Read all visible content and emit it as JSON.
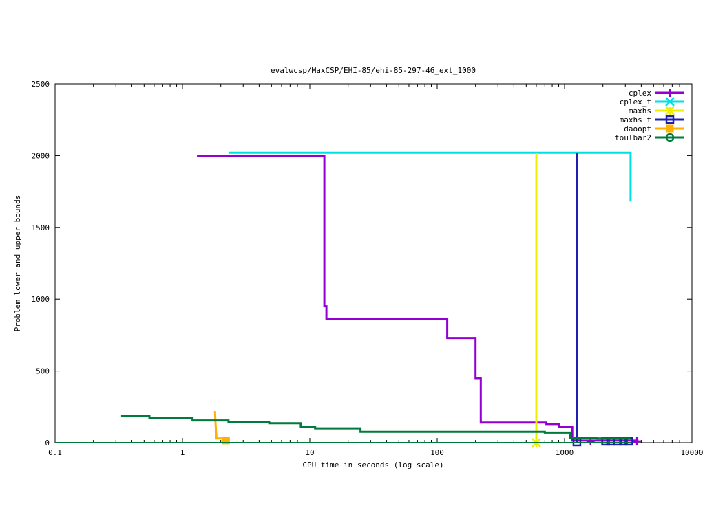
{
  "chart_data": {
    "type": "line",
    "title": "evalwcsp/MaxCSP/EHI-85/ehi-85-297-46_ext_1000",
    "xlabel": "CPU time in seconds (log scale)",
    "ylabel": "Problem lower and upper bounds",
    "xscale": "log",
    "xlim": [
      0.1,
      10000
    ],
    "ylim": [
      0,
      2500
    ],
    "xticks": [
      0.1,
      1,
      10,
      100,
      1000,
      10000
    ],
    "xtick_labels": [
      "0.1",
      "1",
      "10",
      "100",
      "1000",
      "10000"
    ],
    "yticks": [
      0,
      500,
      1000,
      1500,
      2000,
      2500
    ],
    "ytick_labels": [
      "0",
      "500",
      "1000",
      "1500",
      "2000",
      "2500"
    ],
    "legend_position": "top-right",
    "grid": false,
    "series": [
      {
        "name": "cplex",
        "color": "#9400d3",
        "marker": "plus",
        "points": [
          [
            1.3,
            1995
          ],
          [
            13,
            1995
          ],
          [
            13,
            950
          ],
          [
            13.5,
            950
          ],
          [
            13.5,
            860
          ],
          [
            120,
            860
          ],
          [
            120,
            730
          ],
          [
            200,
            730
          ],
          [
            200,
            450
          ],
          [
            220,
            450
          ],
          [
            220,
            140
          ],
          [
            720,
            140
          ],
          [
            720,
            130
          ],
          [
            900,
            130
          ],
          [
            900,
            110
          ],
          [
            1150,
            110
          ],
          [
            1150,
            15
          ],
          [
            3800,
            15
          ]
        ],
        "markers": [
          [
            1600,
            10
          ],
          [
            3700,
            10
          ]
        ],
        "lower": [
          [
            500,
            0
          ],
          [
            3800,
            0
          ]
        ]
      },
      {
        "name": "cplex_t",
        "color": "#00e0e0",
        "marker": "x",
        "points": [
          [
            2.3,
            2020
          ],
          [
            3300,
            2020
          ],
          [
            3300,
            1680
          ]
        ],
        "markers": []
      },
      {
        "name": "maxhs",
        "color": "#eeee00",
        "marker": "asterisk",
        "points": [
          [
            600,
            2020
          ],
          [
            600,
            0
          ]
        ],
        "markers": [
          [
            600,
            0
          ]
        ]
      },
      {
        "name": "maxhs_t",
        "color": "#2020b0",
        "marker": "square",
        "points": [
          [
            1250,
            2020
          ],
          [
            1250,
            0
          ]
        ],
        "markers": [
          [
            1250,
            5
          ],
          [
            2100,
            10
          ],
          [
            2300,
            10
          ],
          [
            2600,
            10
          ],
          [
            2900,
            10
          ],
          [
            3200,
            10
          ]
        ]
      },
      {
        "name": "daoopt",
        "color": "#ffb000",
        "marker": "filled-square",
        "points": [
          [
            1.8,
            220
          ],
          [
            1.82,
            130
          ],
          [
            1.85,
            30
          ],
          [
            2.2,
            30
          ],
          [
            2.2,
            0
          ]
        ],
        "markers": [
          [
            2.2,
            15
          ]
        ]
      },
      {
        "name": "toulbar2",
        "color": "#007a3d",
        "marker": "circle",
        "points": [
          [
            0.33,
            185
          ],
          [
            0.55,
            185
          ],
          [
            0.55,
            170
          ],
          [
            1.2,
            170
          ],
          [
            1.2,
            155
          ],
          [
            2.3,
            155
          ],
          [
            2.3,
            145
          ],
          [
            4.8,
            145
          ],
          [
            4.8,
            135
          ],
          [
            8.5,
            135
          ],
          [
            8.5,
            110
          ],
          [
            11,
            110
          ],
          [
            11,
            100
          ],
          [
            25,
            100
          ],
          [
            25,
            75
          ],
          [
            700,
            75
          ],
          [
            700,
            70
          ],
          [
            1100,
            70
          ],
          [
            1100,
            35
          ],
          [
            1800,
            35
          ],
          [
            1800,
            30
          ],
          [
            3300,
            30
          ]
        ],
        "markers": [],
        "lower": [
          [
            0.1,
            0
          ],
          [
            3300,
            0
          ]
        ]
      }
    ]
  }
}
